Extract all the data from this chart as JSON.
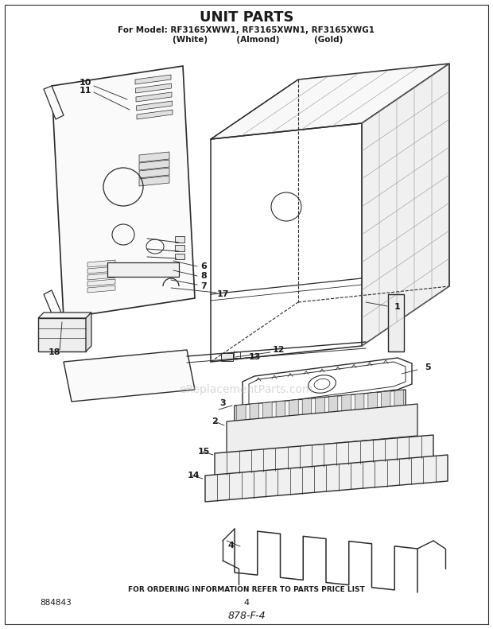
{
  "title": "UNIT PARTS",
  "subtitle_line1": "For Model: RF3165XWW1, RF3165XWN1, RF3165XWG1",
  "subtitle_line2": "        (White)          (Almond)            (Gold)",
  "footer_text": "FOR ORDERING INFORMATION REFER TO PARTS PRICE LIST",
  "part_number_left": "884843",
  "page_number": "4",
  "doc_ref": "878-F-4",
  "watermark": "eReplacementParts.com",
  "bg_color": "#ffffff",
  "line_color": "#2a2a2a",
  "text_color": "#1a1a1a"
}
